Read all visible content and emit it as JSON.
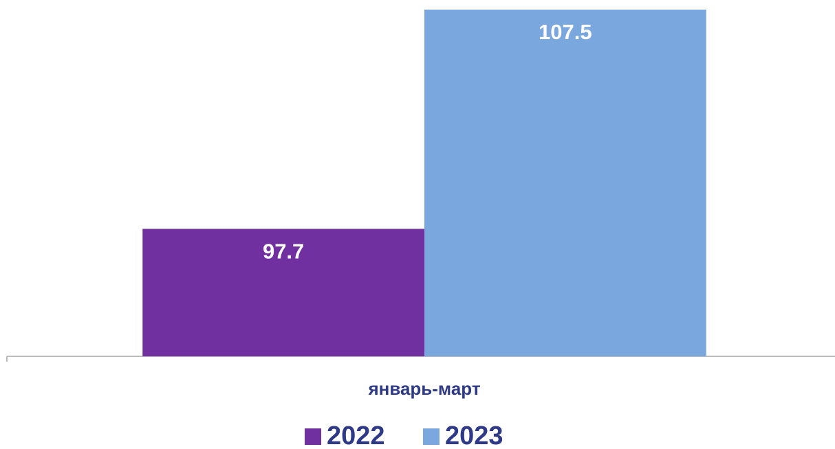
{
  "chart_data": {
    "type": "bar",
    "categories": [
      "январь-март"
    ],
    "series": [
      {
        "name": "2022",
        "color": "#7030a0",
        "values": [
          97.7
        ]
      },
      {
        "name": "2023",
        "color": "#7aa7de",
        "values": [
          107.5
        ]
      }
    ],
    "ylim": [
      92,
      107.5
    ]
  }
}
